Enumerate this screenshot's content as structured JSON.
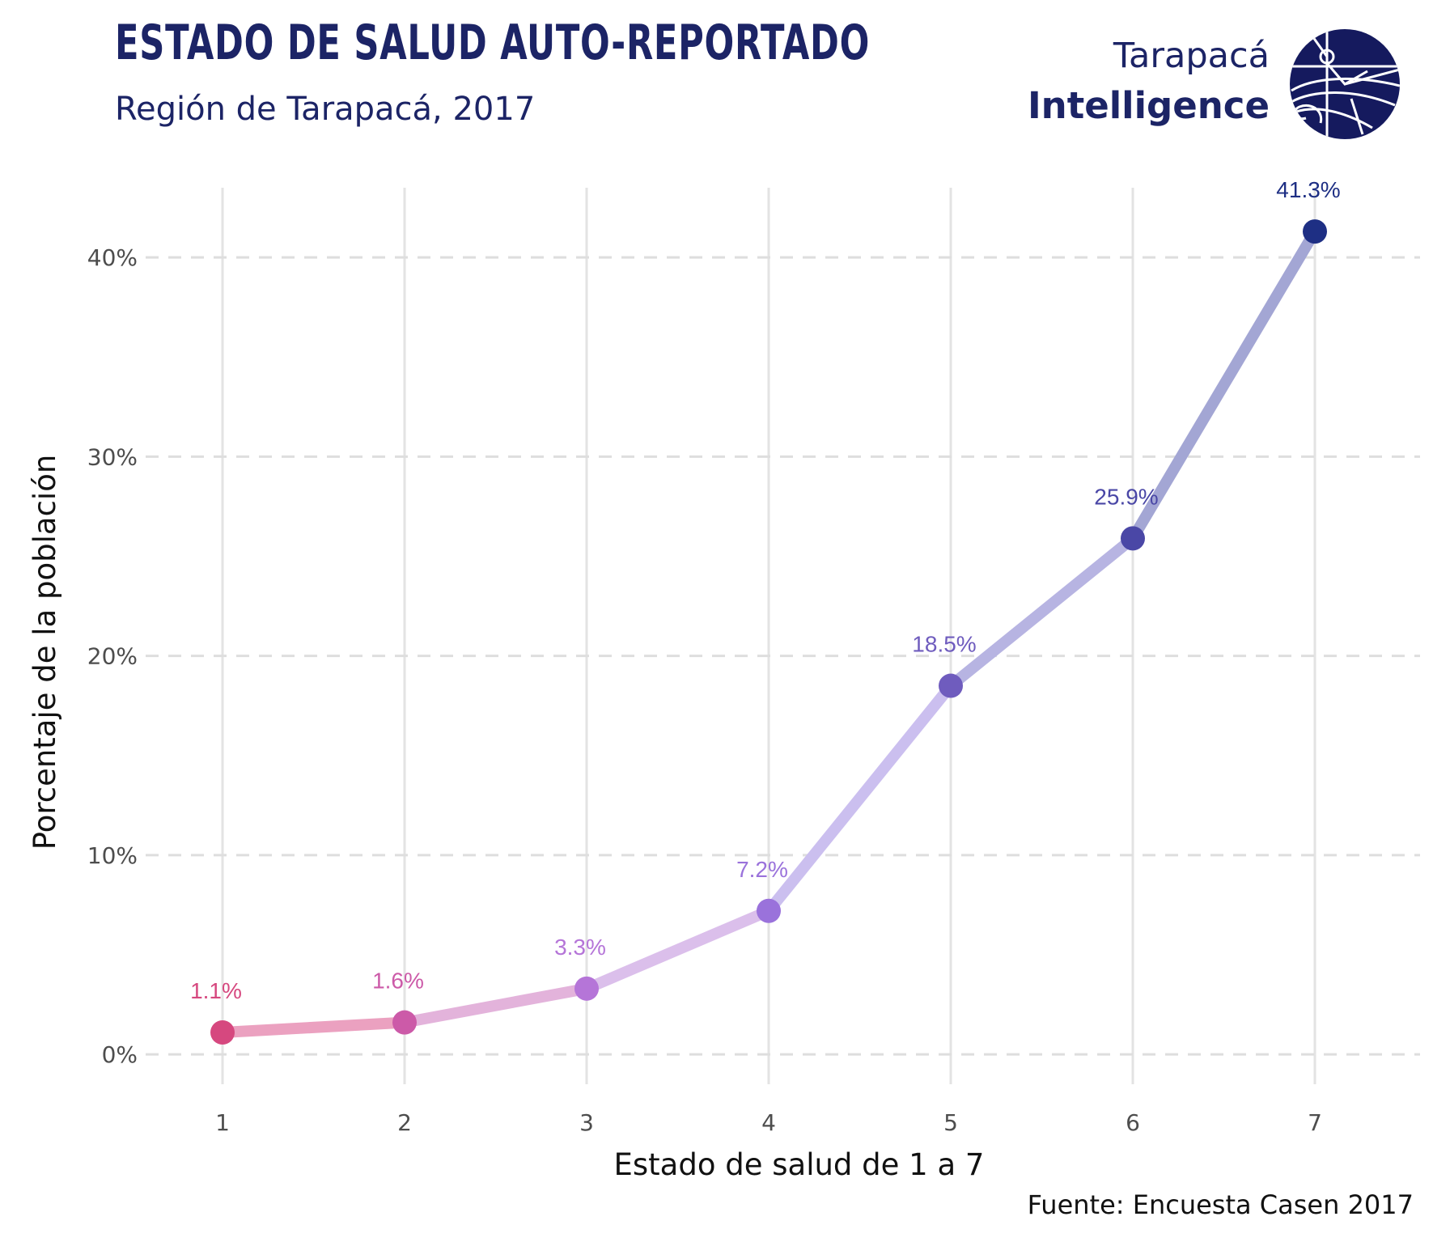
{
  "header": {
    "title": "ESTADO DE SALUD AUTO-REPORTADO",
    "subtitle": "Región de Tarapacá, 2017"
  },
  "logo": {
    "line1": "Tarapacá",
    "line2": "Intelligence",
    "icon": "globe-logo-icon",
    "color": "#151a5e"
  },
  "footer": {
    "source": "Fuente: Encuesta Casen 2017"
  },
  "chart_data": {
    "type": "line",
    "title": "ESTADO DE SALUD AUTO-REPORTADO",
    "subtitle": "Región de Tarapacá, 2017",
    "xlabel": "Estado de salud de 1 a 7",
    "ylabel": "Porcentaje de la población",
    "categories": [
      "1",
      "2",
      "3",
      "4",
      "5",
      "6",
      "7"
    ],
    "values": [
      1.1,
      1.6,
      3.3,
      7.2,
      18.5,
      25.9,
      41.3
    ],
    "data_labels": [
      "1.1%",
      "1.6%",
      "3.3%",
      "7.2%",
      "18.5%",
      "25.9%",
      "41.3%"
    ],
    "y_ticks": [
      0,
      10,
      20,
      30,
      40
    ],
    "y_tick_labels": [
      "0%",
      "10%",
      "20%",
      "30%",
      "40%"
    ],
    "ylim": [
      -1.5,
      43.5
    ],
    "grid": true,
    "point_colors": [
      "#d6487f",
      "#cc5aa8",
      "#b575d8",
      "#9a72db",
      "#6f5cbe",
      "#4a47a6",
      "#1e2f84"
    ],
    "segment_colors": [
      "#eba1c0",
      "#e3b3db",
      "#dbbfeb",
      "#cbbfef",
      "#b7b4e2",
      "#a3a6d4"
    ],
    "source": "Fuente: Encuesta Casen 2017"
  }
}
